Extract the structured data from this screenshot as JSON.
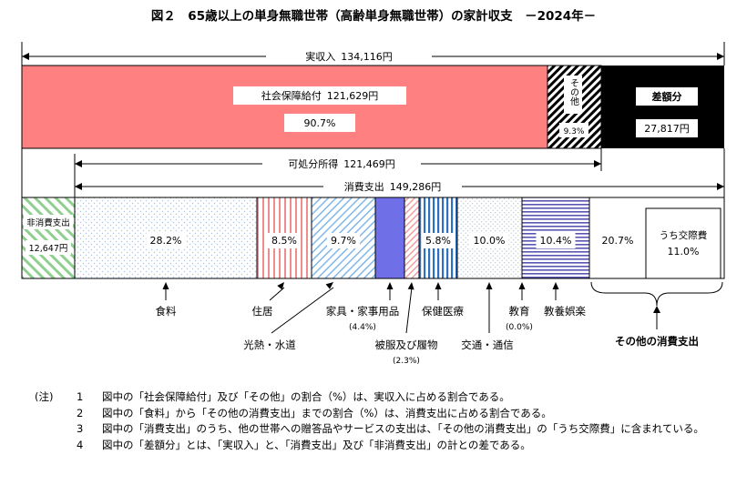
{
  "chart_data": {
    "type": "bar",
    "title": "図２　65歳以上の単身無職世帯（高齢単身無職世帯）の家計収支　－2024年－",
    "income_bracket": {
      "label": "実収入",
      "value_text": "134,116円"
    },
    "income_segments": [
      {
        "key": "social",
        "name": "社会保障給付",
        "value": 121629,
        "value_text": "121,629円",
        "share_text": "90.7%"
      },
      {
        "key": "other",
        "name": "その他",
        "share_text": "9.3%"
      },
      {
        "key": "deficit",
        "name": "差額分",
        "value": 27817,
        "value_text": "27,817円"
      }
    ],
    "disposable_bracket": {
      "label": "可処分所得",
      "value_text": "121,469円"
    },
    "consumption_bracket": {
      "label": "消費支出",
      "value_text": "149,286円"
    },
    "nonconsumption": {
      "name": "非消費支出",
      "value": 12647,
      "value_text": "12,647円"
    },
    "consumption_segments": [
      {
        "key": "food",
        "name": "食料",
        "value": 28.2,
        "share_text": "28.2%"
      },
      {
        "key": "housing",
        "name": "住居",
        "value": 8.5,
        "share_text": "8.5%"
      },
      {
        "key": "utilities",
        "name": "光熱・水道",
        "value": 9.7,
        "share_text": "9.7%"
      },
      {
        "key": "furniture",
        "name": "家具・家事用品",
        "value": 4.4,
        "share_text": "(4.4%)"
      },
      {
        "key": "clothing",
        "name": "被服及び履物",
        "value": 2.3,
        "share_text": "(2.3%)"
      },
      {
        "key": "medical",
        "name": "保健医療",
        "value": 5.8,
        "share_text": "5.8%"
      },
      {
        "key": "transport",
        "name": "交通・通信",
        "value": 10.0,
        "share_text": "10.0%"
      },
      {
        "key": "education",
        "name": "教育",
        "value": 0.0,
        "share_text": "(0.0%)"
      },
      {
        "key": "recreation",
        "name": "教養娯楽",
        "value": 10.4,
        "share_text": "10.4%"
      },
      {
        "key": "others",
        "name": "その他の消費支出",
        "value": 20.7,
        "share_text": "20.7%"
      }
    ],
    "social_expense": {
      "name": "うち交際費",
      "share_text": "11.0%"
    }
  },
  "notes": {
    "head": "(注)",
    "items": [
      {
        "num": "1",
        "text": "図中の「社会保障給付」及び「その他」の割合（%）は、実収入に占める割合である。"
      },
      {
        "num": "2",
        "text": "図中の「食料」から「その他の消費支出」までの割合（%）は、消費支出に占める割合である。"
      },
      {
        "num": "3",
        "text": "図中の「消費支出」のうち、他の世帯への贈答品やサービスの支出は、「その他の消費支出」の「うち交際費」に含まれている。"
      },
      {
        "num": "4",
        "text": "図中の「差額分」とは、「実収入」と、「消費支出」及び「非消費支出」の計との差である。"
      }
    ]
  }
}
